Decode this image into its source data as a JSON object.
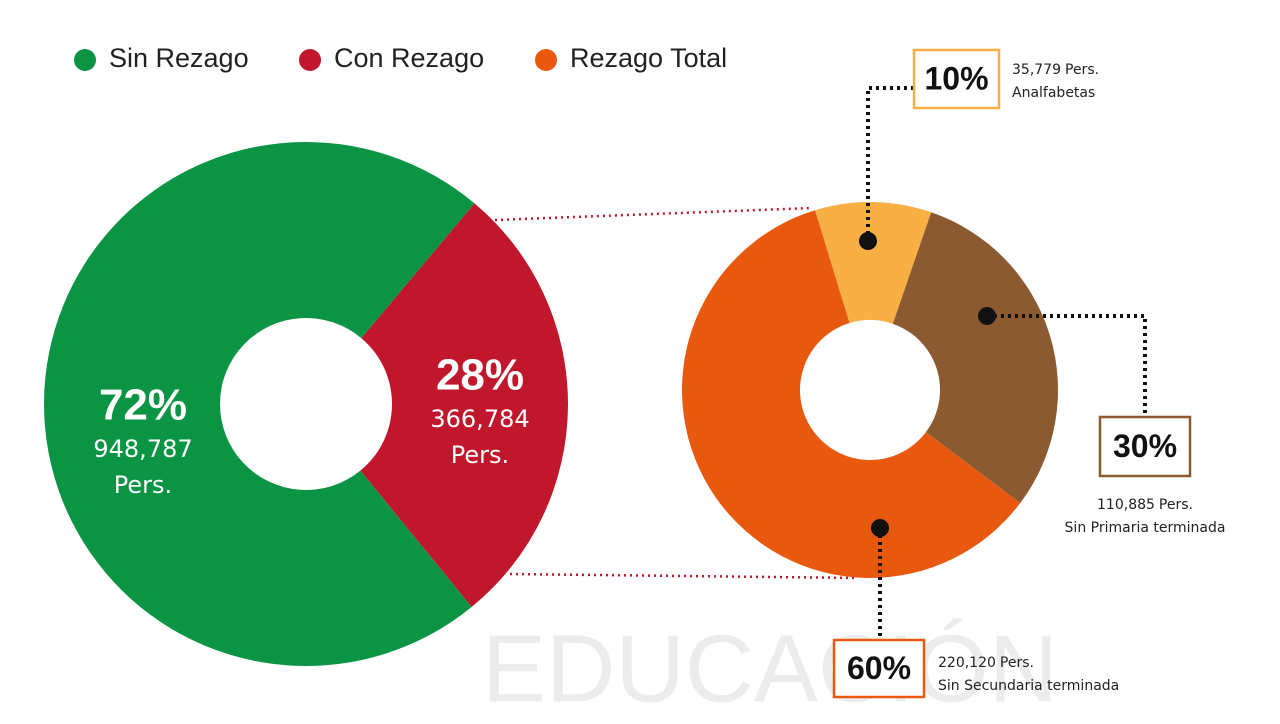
{
  "legend": {
    "items": [
      {
        "name": "Sin Rezago",
        "color": "#0a9444"
      },
      {
        "name": "Con Rezago",
        "color": "#c0172d"
      },
      {
        "name": "Rezago Total",
        "color": "#e8590f"
      }
    ]
  },
  "watermark": "EDUCACIÓN",
  "chart_data": [
    {
      "type": "donut",
      "categories": [
        "Sin Rezago",
        "Con Rezago"
      ],
      "values": [
        72,
        28
      ],
      "value_labels": [
        "72%",
        "28%"
      ],
      "counts": [
        948787,
        366784
      ],
      "count_labels": [
        "948,787",
        "366,784"
      ],
      "unit": "Pers.",
      "colors": [
        "#0a9444",
        "#c0172d"
      ]
    },
    {
      "type": "donut",
      "categories": [
        "Analfabetas",
        "Sin Primaria terminada",
        "Sin Secundaria terminada"
      ],
      "values": [
        10,
        30,
        60
      ],
      "value_labels": [
        "10%",
        "30%",
        "60%"
      ],
      "counts": [
        35779,
        110885,
        220120
      ],
      "count_labels": [
        "35,779",
        "110,885",
        "220,120"
      ],
      "unit": "Pers.",
      "colors": [
        "#f8b045",
        "#8b5a30",
        "#e8590f"
      ]
    }
  ]
}
